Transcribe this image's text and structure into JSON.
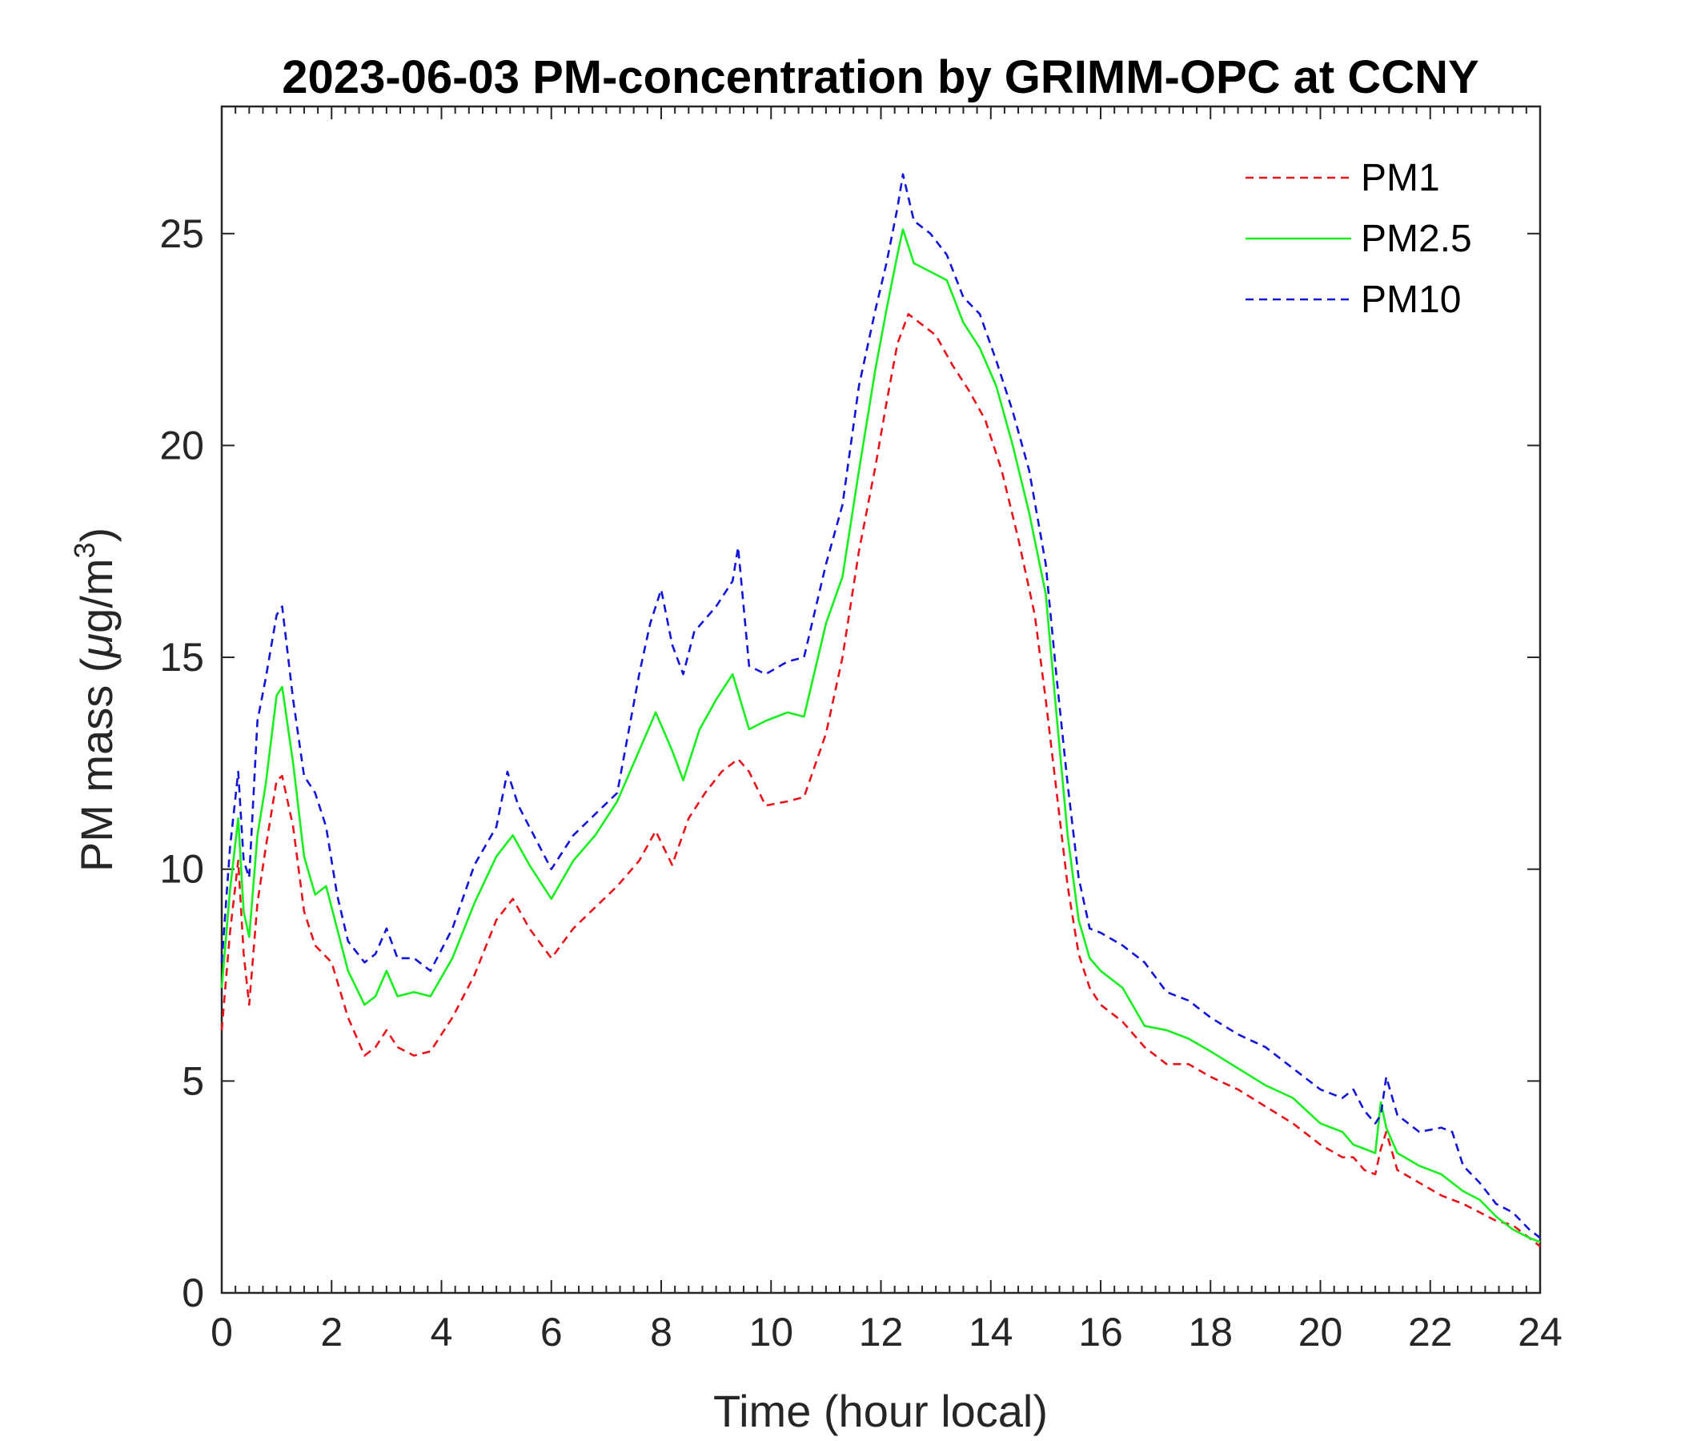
{
  "chart_data": {
    "type": "line",
    "title": "2023-06-03 PM-concentration by GRIMM-OPC at CCNY",
    "xlabel": "Time (hour local)",
    "ylabel_main": "PM mass (",
    "ylabel_mu": "μ",
    "ylabel_unit": "g/m",
    "ylabel_sup": "3",
    "ylabel_close": ")",
    "xlim": [
      0,
      24
    ],
    "ylim": [
      0,
      28
    ],
    "xticks": [
      0,
      2,
      4,
      6,
      8,
      10,
      12,
      14,
      16,
      18,
      20,
      22,
      24
    ],
    "yticks": [
      0,
      5,
      10,
      15,
      20,
      25
    ],
    "xtick_labels": [
      "0",
      "2",
      "4",
      "6",
      "8",
      "10",
      "12",
      "14",
      "16",
      "18",
      "20",
      "22",
      "24"
    ],
    "ytick_labels": [
      "0",
      "5",
      "10",
      "15",
      "20",
      "25"
    ],
    "grid": false,
    "legend_position": "top-right",
    "series": [
      {
        "name": "PM1",
        "color": "#e8141c",
        "dash": "dashed",
        "x": [
          0,
          0.15,
          0.3,
          0.4,
          0.5,
          0.65,
          0.8,
          1.0,
          1.1,
          1.3,
          1.5,
          1.7,
          2.0,
          2.3,
          2.6,
          2.8,
          3.0,
          3.2,
          3.5,
          3.8,
          4.2,
          4.6,
          5.0,
          5.3,
          5.6,
          6.0,
          6.4,
          6.8,
          7.2,
          7.6,
          7.9,
          8.2,
          8.5,
          8.8,
          9.1,
          9.4,
          9.6,
          9.9,
          10.3,
          10.6,
          11.0,
          11.3,
          11.6,
          11.9,
          12.1,
          12.3,
          12.5,
          12.7,
          13.0,
          13.3,
          13.6,
          13.9,
          14.2,
          14.5,
          14.8,
          15.0,
          15.2,
          15.4,
          15.6,
          15.8,
          16.0,
          16.4,
          16.8,
          17.2,
          17.6,
          18.0,
          18.5,
          19.0,
          19.5,
          20.0,
          20.4,
          20.6,
          20.8,
          21.0,
          21.1,
          21.2,
          21.4,
          21.8,
          22.2,
          22.6,
          22.9,
          23.2,
          23.5,
          23.8,
          24.0
        ],
        "values": [
          6.2,
          8.5,
          10.2,
          8.0,
          6.8,
          9.2,
          10.5,
          12.1,
          12.2,
          11.0,
          9.0,
          8.2,
          7.8,
          6.5,
          5.6,
          5.8,
          6.2,
          5.8,
          5.6,
          5.7,
          6.5,
          7.5,
          8.8,
          9.3,
          8.6,
          7.9,
          8.6,
          9.1,
          9.6,
          10.2,
          10.9,
          10.1,
          11.2,
          11.8,
          12.3,
          12.6,
          12.3,
          11.5,
          11.6,
          11.7,
          13.2,
          15.0,
          17.5,
          19.5,
          21.0,
          22.4,
          23.1,
          22.9,
          22.6,
          21.9,
          21.3,
          20.6,
          19.4,
          17.8,
          16.0,
          14.0,
          11.8,
          9.6,
          8.0,
          7.2,
          6.8,
          6.4,
          5.8,
          5.4,
          5.4,
          5.1,
          4.8,
          4.4,
          4.0,
          3.5,
          3.2,
          3.2,
          2.9,
          2.8,
          3.4,
          3.8,
          2.9,
          2.6,
          2.3,
          2.1,
          1.9,
          1.7,
          1.6,
          1.3,
          1.1
        ]
      },
      {
        "name": "PM2.5",
        "color": "#17f01e",
        "dash": "solid",
        "x": [
          0,
          0.15,
          0.3,
          0.4,
          0.5,
          0.65,
          0.8,
          1.0,
          1.1,
          1.3,
          1.5,
          1.7,
          1.9,
          2.1,
          2.3,
          2.6,
          2.8,
          3.0,
          3.2,
          3.5,
          3.8,
          4.2,
          4.6,
          5.0,
          5.3,
          5.6,
          6.0,
          6.4,
          6.8,
          7.2,
          7.6,
          7.9,
          8.2,
          8.4,
          8.7,
          9.0,
          9.3,
          9.6,
          9.9,
          10.3,
          10.6,
          11.0,
          11.3,
          11.6,
          11.9,
          12.1,
          12.3,
          12.4,
          12.6,
          12.9,
          13.2,
          13.5,
          13.8,
          14.1,
          14.4,
          14.7,
          15.0,
          15.2,
          15.4,
          15.6,
          15.8,
          16.0,
          16.4,
          16.8,
          17.2,
          17.6,
          18.0,
          18.5,
          19.0,
          19.5,
          20.0,
          20.4,
          20.6,
          20.8,
          21.0,
          21.1,
          21.2,
          21.4,
          21.8,
          22.2,
          22.6,
          22.9,
          23.2,
          23.5,
          23.8,
          24.0
        ],
        "values": [
          7.2,
          9.5,
          11.2,
          9.0,
          8.4,
          10.8,
          12.0,
          14.1,
          14.3,
          12.5,
          10.3,
          9.4,
          9.6,
          8.6,
          7.6,
          6.8,
          7.0,
          7.6,
          7.0,
          7.1,
          7.0,
          7.9,
          9.2,
          10.3,
          10.8,
          10.1,
          9.3,
          10.2,
          10.8,
          11.6,
          12.8,
          13.7,
          12.8,
          12.1,
          13.3,
          14.0,
          14.6,
          13.3,
          13.5,
          13.7,
          13.6,
          15.8,
          16.9,
          19.4,
          21.8,
          23.2,
          24.5,
          25.1,
          24.3,
          24.1,
          23.9,
          22.9,
          22.3,
          21.4,
          20.0,
          18.4,
          16.5,
          13.6,
          10.8,
          8.8,
          7.9,
          7.6,
          7.2,
          6.3,
          6.2,
          6.0,
          5.7,
          5.3,
          4.9,
          4.6,
          4.0,
          3.8,
          3.5,
          3.4,
          3.3,
          4.5,
          3.9,
          3.3,
          3.0,
          2.8,
          2.4,
          2.2,
          1.8,
          1.5,
          1.3,
          1.2
        ]
      },
      {
        "name": "PM10",
        "color": "#1214d8",
        "dash": "dashed",
        "x": [
          0,
          0.15,
          0.3,
          0.4,
          0.5,
          0.65,
          0.8,
          1.0,
          1.1,
          1.3,
          1.5,
          1.7,
          1.9,
          2.1,
          2.3,
          2.6,
          2.8,
          3.0,
          3.2,
          3.5,
          3.8,
          4.2,
          4.6,
          5.0,
          5.2,
          5.4,
          5.6,
          6.0,
          6.4,
          6.8,
          7.2,
          7.6,
          7.8,
          8.0,
          8.2,
          8.4,
          8.6,
          9.0,
          9.3,
          9.4,
          9.6,
          9.9,
          10.3,
          10.6,
          11.0,
          11.3,
          11.6,
          11.9,
          12.1,
          12.3,
          12.4,
          12.6,
          12.9,
          13.2,
          13.5,
          13.8,
          14.1,
          14.4,
          14.7,
          15.0,
          15.2,
          15.4,
          15.6,
          15.8,
          16.0,
          16.4,
          16.8,
          17.2,
          17.6,
          18.0,
          18.5,
          19.0,
          19.5,
          20.0,
          20.4,
          20.6,
          20.8,
          21.0,
          21.1,
          21.2,
          21.4,
          21.8,
          22.2,
          22.4,
          22.6,
          22.9,
          23.2,
          23.5,
          23.8,
          24.0
        ],
        "values": [
          7.8,
          10.5,
          12.3,
          10.2,
          9.8,
          13.5,
          14.5,
          16.0,
          16.2,
          14.0,
          12.2,
          11.8,
          11.0,
          9.4,
          8.3,
          7.8,
          8.0,
          8.6,
          7.9,
          7.9,
          7.6,
          8.6,
          10.1,
          11.0,
          12.3,
          11.5,
          11.0,
          10.0,
          10.8,
          11.3,
          11.8,
          14.6,
          15.8,
          16.6,
          15.3,
          14.6,
          15.6,
          16.2,
          16.8,
          17.6,
          14.8,
          14.6,
          14.9,
          15.0,
          17.2,
          18.6,
          21.4,
          23.2,
          24.3,
          25.6,
          26.4,
          25.3,
          25.0,
          24.5,
          23.5,
          23.1,
          22.0,
          20.8,
          19.4,
          17.2,
          14.5,
          12.0,
          9.8,
          8.6,
          8.5,
          8.2,
          7.8,
          7.1,
          6.9,
          6.5,
          6.1,
          5.8,
          5.3,
          4.8,
          4.6,
          4.8,
          4.3,
          4.0,
          4.2,
          5.1,
          4.2,
          3.8,
          3.9,
          3.8,
          3.0,
          2.6,
          2.1,
          1.9,
          1.5,
          1.3
        ]
      }
    ]
  }
}
